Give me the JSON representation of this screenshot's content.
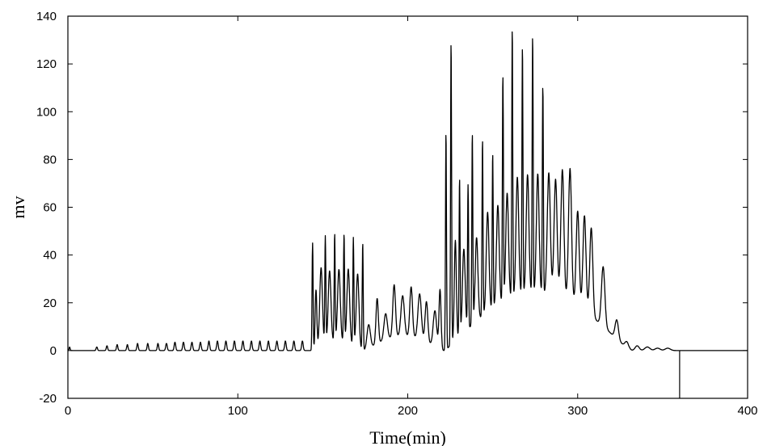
{
  "chart_data": {
    "type": "line",
    "title": "",
    "xlabel": "Time(min)",
    "ylabel": "mv",
    "xlim": [
      0,
      400
    ],
    "ylim": [
      -20,
      140
    ],
    "xticks": [
      0,
      100,
      200,
      300,
      400
    ],
    "yticks": [
      -20,
      0,
      20,
      40,
      60,
      80,
      100,
      120,
      140
    ],
    "grid": false,
    "legend": "none",
    "baseline_end_marker_x": 360,
    "series": [
      {
        "color": "#000000",
        "peaks": [
          [
            1,
            1.5,
            0.3,
            0
          ],
          [
            17,
            1.5,
            0.4,
            0
          ],
          [
            23,
            2,
            0.4,
            0
          ],
          [
            29,
            2.5,
            0.4,
            0
          ],
          [
            35,
            2.5,
            0.4,
            0
          ],
          [
            41,
            3,
            0.4,
            0
          ],
          [
            47,
            3,
            0.4,
            0
          ],
          [
            53,
            3,
            0.4,
            0
          ],
          [
            58,
            3,
            0.45,
            0
          ],
          [
            63,
            3.5,
            0.45,
            0
          ],
          [
            68,
            3.5,
            0.45,
            0
          ],
          [
            73,
            3.5,
            0.45,
            0
          ],
          [
            78,
            3.5,
            0.45,
            0
          ],
          [
            83,
            4,
            0.45,
            0
          ],
          [
            88,
            4,
            0.45,
            0
          ],
          [
            93,
            4,
            0.45,
            0
          ],
          [
            98,
            4,
            0.45,
            0
          ],
          [
            103,
            4,
            0.45,
            0
          ],
          [
            108,
            4,
            0.45,
            0
          ],
          [
            113,
            4,
            0.45,
            0
          ],
          [
            118,
            4,
            0.45,
            0
          ],
          [
            123,
            4,
            0.45,
            0
          ],
          [
            128,
            4,
            0.45,
            0
          ],
          [
            133,
            4,
            0.45,
            0
          ],
          [
            138,
            4,
            0.45,
            0
          ],
          [
            144,
            45,
            0.3,
            1
          ],
          [
            146,
            25,
            0.5,
            1
          ],
          [
            149,
            33,
            0.8,
            0
          ],
          [
            151.5,
            45,
            0.3,
            1
          ],
          [
            154,
            30,
            0.8,
            0
          ],
          [
            157,
            45,
            0.3,
            1
          ],
          [
            159.5,
            30,
            0.8,
            0
          ],
          [
            162.5,
            45,
            0.3,
            1
          ],
          [
            165,
            31,
            0.8,
            0
          ],
          [
            168,
            45,
            0.3,
            1
          ],
          [
            170.5,
            31,
            0.8,
            0
          ],
          [
            173.5,
            45,
            0.3,
            1
          ],
          [
            177,
            10,
            1,
            0
          ],
          [
            182,
            19,
            0.7,
            0
          ],
          [
            187,
            11,
            1,
            0
          ],
          [
            192,
            22,
            0.8,
            0
          ],
          [
            197,
            17,
            1,
            0
          ],
          [
            202,
            21,
            0.8,
            0
          ],
          [
            207,
            19,
            1,
            0
          ],
          [
            211,
            17,
            0.8,
            0
          ],
          [
            216,
            15,
            1,
            0
          ],
          [
            219,
            25,
            0.6,
            0
          ],
          [
            222.5,
            91,
            0.3,
            1
          ],
          [
            225.5,
            127,
            0.3,
            1
          ],
          [
            228,
            42,
            0.6,
            1
          ],
          [
            230.5,
            66,
            0.3,
            1
          ],
          [
            233,
            35,
            0.8,
            0
          ],
          [
            235.5,
            60,
            0.3,
            1
          ],
          [
            238,
            80,
            0.3,
            1
          ],
          [
            240.5,
            35,
            0.8,
            0
          ],
          [
            244,
            74,
            0.3,
            1
          ],
          [
            247,
            42,
            0.8,
            0
          ],
          [
            250,
            65,
            0.3,
            1
          ],
          [
            253,
            42,
            0.8,
            0
          ],
          [
            256,
            95,
            0.3,
            1
          ],
          [
            258.5,
            45,
            0.8,
            0
          ],
          [
            261.5,
            113,
            0.3,
            1
          ],
          [
            264.5,
            50,
            0.8,
            0
          ],
          [
            267.5,
            104,
            0.3,
            1
          ],
          [
            270.5,
            50,
            0.8,
            0
          ],
          [
            273.5,
            108,
            0.3,
            1
          ],
          [
            276.5,
            50,
            0.8,
            0
          ],
          [
            279.5,
            87,
            0.3,
            1
          ],
          [
            283,
            51,
            0.9,
            0
          ],
          [
            287,
            49,
            0.9,
            0
          ],
          [
            291,
            54,
            0.9,
            0
          ],
          [
            295.5,
            56,
            0.9,
            0
          ],
          [
            300,
            40,
            0.9,
            0
          ],
          [
            304,
            40,
            0.9,
            0
          ],
          [
            308,
            37,
            0.9,
            0
          ],
          [
            315,
            25,
            1,
            0
          ],
          [
            323,
            8,
            1,
            0
          ],
          [
            329,
            3,
            1.2,
            0
          ],
          [
            335,
            2,
            1.2,
            0
          ],
          [
            341,
            1.5,
            1.5,
            0
          ],
          [
            347,
            1,
            1.5,
            0
          ],
          [
            353,
            1,
            1.5,
            0
          ]
        ],
        "hump": [
          [
            145,
            173,
            4
          ],
          [
            175,
            220,
            6
          ],
          [
            222,
            330,
            24
          ]
        ]
      }
    ]
  }
}
